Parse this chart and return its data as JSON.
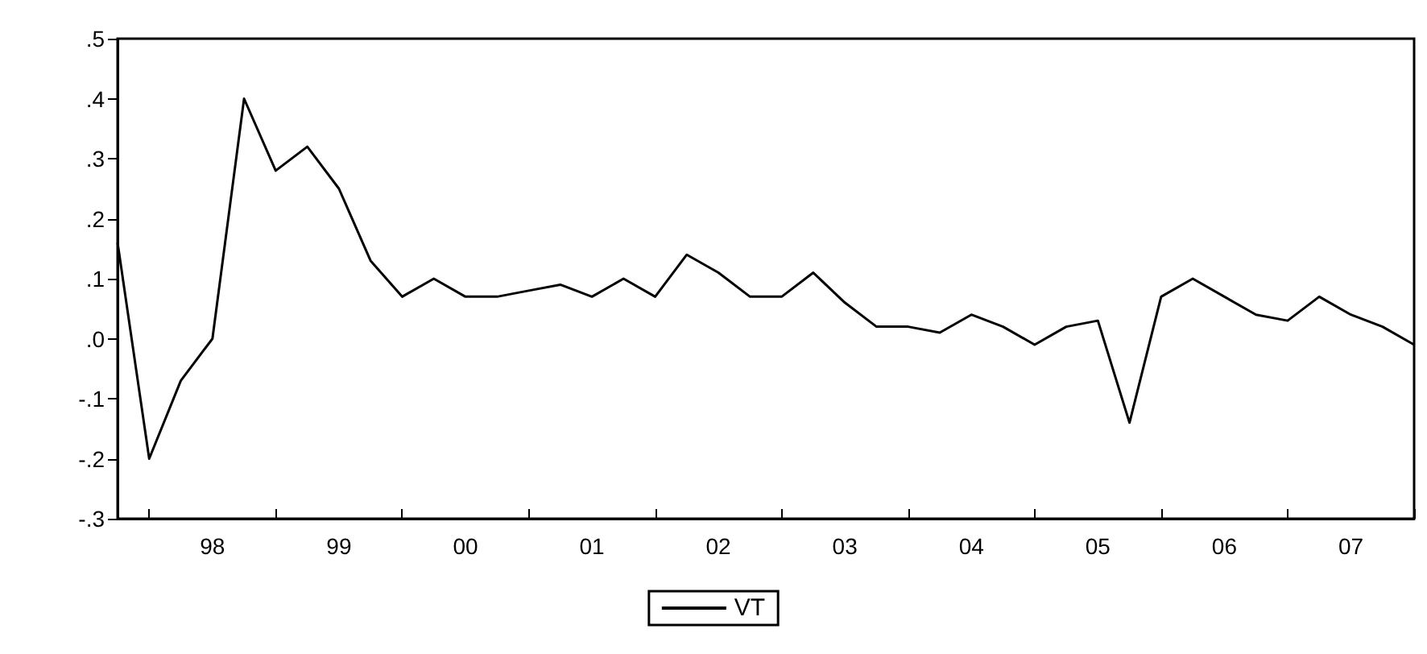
{
  "chart_data": {
    "type": "line",
    "categories": [
      null,
      null,
      null,
      "98",
      null,
      null,
      null,
      "99",
      null,
      null,
      null,
      "00",
      null,
      null,
      null,
      "01",
      null,
      null,
      null,
      "02",
      null,
      null,
      null,
      "03",
      null,
      null,
      null,
      "04",
      null,
      null,
      null,
      "05",
      null,
      null,
      null,
      "06",
      null,
      null,
      null,
      "07",
      null,
      null
    ],
    "series": [
      {
        "name": "VT",
        "color": "#000000",
        "values": [
          0.16,
          -0.2,
          -0.07,
          0.0,
          0.4,
          0.28,
          0.32,
          0.25,
          0.13,
          0.07,
          0.1,
          0.07,
          0.07,
          0.08,
          0.09,
          0.07,
          0.1,
          0.07,
          0.14,
          0.11,
          0.07,
          0.07,
          0.11,
          0.06,
          0.02,
          0.02,
          0.01,
          0.04,
          0.02,
          -0.01,
          0.02,
          0.03,
          -0.14,
          0.07,
          0.1,
          0.07,
          0.04,
          0.03,
          0.07,
          0.04,
          0.02,
          -0.01
        ]
      }
    ],
    "ylim": [
      -0.3,
      0.5
    ],
    "yticks": [
      {
        "value": -0.3,
        "label": "-.3"
      },
      {
        "value": -0.2,
        "label": "-.2"
      },
      {
        "value": -0.1,
        "label": "-.1"
      },
      {
        "value": 0,
        "label": ".0"
      },
      {
        "value": 0.1,
        "label": ".1"
      },
      {
        "value": 0.2,
        "label": ".2"
      },
      {
        "value": 0.3,
        "label": ".3"
      },
      {
        "value": 0.4,
        "label": ".4"
      },
      {
        "value": 0.5,
        "label": ".5"
      }
    ],
    "legend": "bottom",
    "grid": false,
    "marker": "none",
    "line_style": "solid"
  }
}
